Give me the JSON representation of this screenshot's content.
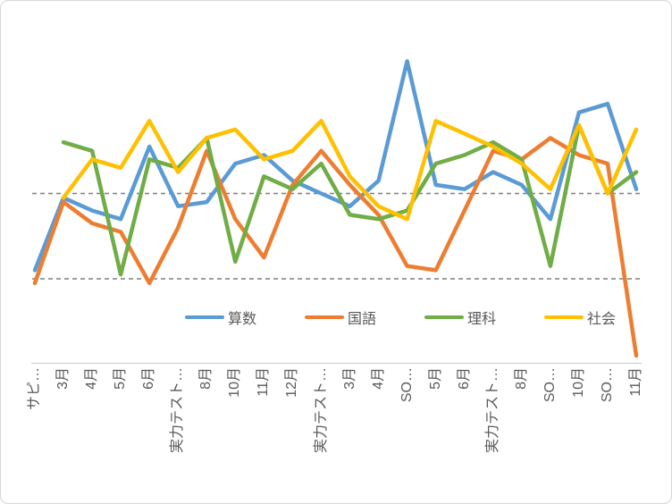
{
  "chart_data": {
    "type": "line",
    "title": "",
    "categories": [
      "サピ…",
      "3月",
      "4月",
      "5月",
      "6月",
      "実力テスト…",
      "8月",
      "10月",
      "11月",
      "12月",
      "実力テスト…",
      "3月",
      "4月",
      "SO…",
      "5月",
      "6月",
      "実力テスト…",
      "8月",
      "SO…",
      "10月",
      "SO…",
      "11月"
    ],
    "series": [
      {
        "name": "算数",
        "color": "#5B9BD5",
        "values": [
          51,
          59.5,
          58,
          57,
          65.5,
          58.5,
          59,
          63.5,
          64.5,
          61.5,
          60,
          58.5,
          61.5,
          75.5,
          61,
          60.5,
          62.5,
          61,
          57,
          69.5,
          70.5,
          60.5
        ]
      },
      {
        "name": "国語",
        "color": "#ED7D31",
        "values": [
          49.5,
          59,
          56.5,
          55.5,
          49.5,
          56,
          65,
          57,
          52.5,
          61,
          65,
          61,
          57.5,
          51.5,
          51,
          58,
          65,
          64,
          66.5,
          64.5,
          63.5,
          41
        ]
      },
      {
        "name": "理科",
        "color": "#70AD47",
        "values": [
          null,
          66,
          65,
          50.5,
          64,
          63,
          66.5,
          52,
          62,
          60.5,
          63.5,
          57.5,
          57,
          58,
          63.5,
          64.5,
          66,
          64,
          51.5,
          68,
          60,
          62.5
        ]
      },
      {
        "name": "社会",
        "color": "#FFC000",
        "values": [
          null,
          59.5,
          64,
          63,
          68.5,
          62.5,
          66.5,
          67.5,
          64,
          65,
          68.5,
          62,
          58.5,
          57,
          68.5,
          67,
          65.5,
          63.5,
          60.5,
          68,
          60,
          67.5
        ]
      }
    ],
    "gridlines": {
      "style": "dashed",
      "values": [
        60,
        50
      ]
    },
    "y_axis": {
      "labels_visible": false,
      "min": 40,
      "max": 78
    },
    "x_axis": {
      "labels_rotation_deg": 90,
      "line_visible": true
    },
    "legend": {
      "position": "bottom-inside"
    }
  },
  "colors": {
    "axis_line": "#C9C9C9",
    "gridline": "#7F7F7F",
    "label_text": "#595959",
    "frame_border": "#D7D7D7"
  }
}
